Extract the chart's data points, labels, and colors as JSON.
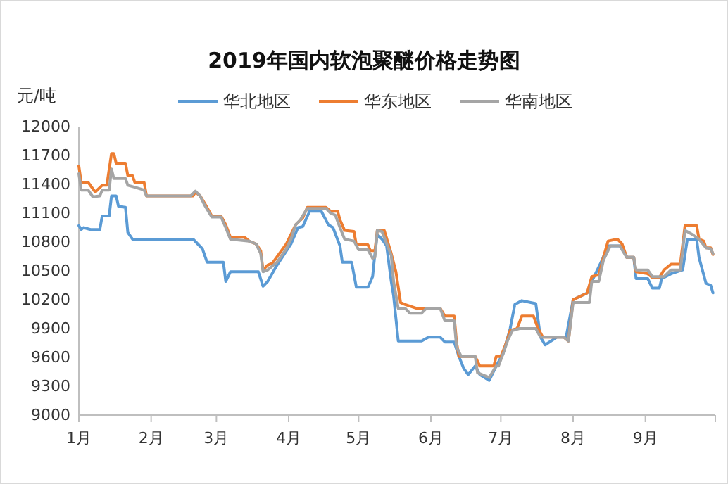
{
  "chart_data": {
    "type": "line",
    "title": "2019年国内软泡聚醚价格走势图",
    "ylabel": "元/吨",
    "legend": "top",
    "xlim": [
      "--01-01",
      "--10-01"
    ],
    "xticks": [
      {
        "value": "--01-01",
        "label": "1月"
      },
      {
        "value": "--02-01",
        "label": "2月"
      },
      {
        "value": "--03-01",
        "label": "3月"
      },
      {
        "value": "--04-01",
        "label": "4月"
      },
      {
        "value": "--05-01",
        "label": "5月"
      },
      {
        "value": "--06-01",
        "label": "6月"
      },
      {
        "value": "--07-01",
        "label": "7月"
      },
      {
        "value": "--08-01",
        "label": "8月"
      },
      {
        "value": "--09-01",
        "label": "9月"
      },
      {
        "value": "--10-01",
        "label": null
      }
    ],
    "ylim": [
      9000,
      12000
    ],
    "yticks": [
      9000,
      9300,
      9600,
      9900,
      10200,
      10500,
      10800,
      11100,
      11400,
      11700,
      12000
    ],
    "series": [
      {
        "name": "华北地区",
        "color": "#5b9bd5",
        "x": [
          "--01-01",
          "--01-02",
          "--01-03",
          "--01-06",
          "--01-10",
          "--01-11",
          "--01-14",
          "--01-15",
          "--01-17",
          "--01-18",
          "--01-21",
          "--01-22",
          "--01-24",
          "--02-19",
          "--02-21",
          "--02-23",
          "--02-25",
          "--03-04",
          "--03-05",
          "--03-07",
          "--03-19",
          "--03-21",
          "--03-23",
          "--03-27",
          "--04-02",
          "--04-05",
          "--04-07",
          "--04-10",
          "--04-15",
          "--04-18",
          "--04-20",
          "--04-23",
          "--04-24",
          "--04-28",
          "--04-30",
          "--05-05",
          "--05-07",
          "--05-08",
          "--05-09",
          "--05-11",
          "--05-13",
          "--05-15",
          "--05-16",
          "--05-18",
          "--05-28",
          "--05-31",
          "--06-05",
          "--06-07",
          "--06-11",
          "--06-13",
          "--06-15",
          "--06-17",
          "--06-20",
          "--06-22",
          "--06-26",
          "--06-29",
          "--07-02",
          "--07-05",
          "--07-07",
          "--07-10",
          "--07-16",
          "--07-18",
          "--07-20",
          "--07-25",
          "--07-29",
          "--08-01",
          "--08-07",
          "--08-09",
          "--08-13",
          "--08-16",
          "--08-22",
          "--08-24",
          "--08-27",
          "--08-28",
          "--09-02",
          "--09-04",
          "--09-07",
          "--09-08",
          "--09-12",
          "--09-17",
          "--09-19",
          "--09-23",
          "--09-24",
          "--09-27",
          "--09-29",
          "--09-30"
        ],
        "values": [
          10970,
          10930,
          10950,
          10930,
          10930,
          11070,
          11070,
          11280,
          11280,
          11170,
          11160,
          10900,
          10830,
          10830,
          10780,
          10730,
          10590,
          10590,
          10390,
          10490,
          10490,
          10340,
          10390,
          10560,
          10780,
          10950,
          10960,
          11120,
          11120,
          10980,
          10950,
          10760,
          10590,
          10590,
          10330,
          10330,
          10440,
          10680,
          10880,
          10830,
          10760,
          10390,
          10240,
          9770,
          9770,
          9810,
          9810,
          9760,
          9760,
          9610,
          9490,
          9420,
          9510,
          9420,
          9360,
          9510,
          9640,
          9900,
          10150,
          10190,
          10160,
          9810,
          9730,
          9810,
          9810,
          10200,
          10270,
          10390,
          10590,
          10760,
          10760,
          10640,
          10640,
          10420,
          10420,
          10320,
          10320,
          10420,
          10470,
          10510,
          10830,
          10830,
          10640,
          10370,
          10350,
          10270
        ]
      },
      {
        "name": "华东地区",
        "color": "#ed7d31",
        "x": [
          "--01-01",
          "--01-02",
          "--01-05",
          "--01-08",
          "--01-11",
          "--01-13",
          "--01-15",
          "--01-16",
          "--01-17",
          "--01-21",
          "--01-22",
          "--01-24",
          "--01-25",
          "--01-29",
          "--01-30",
          "--02-19",
          "--02-20",
          "--02-22",
          "--02-24",
          "--02-27",
          "--03-03",
          "--03-05",
          "--03-07",
          "--03-13",
          "--03-15",
          "--03-18",
          "--03-20",
          "--03-21",
          "--03-23",
          "--03-25",
          "--03-28",
          "--03-31",
          "--04-02",
          "--04-04",
          "--04-07",
          "--04-09",
          "--04-17",
          "--04-19",
          "--04-22",
          "--04-23",
          "--04-25",
          "--04-29",
          "--04-30",
          "--05-05",
          "--05-06",
          "--05-08",
          "--05-09",
          "--05-12",
          "--05-15",
          "--05-17",
          "--05-19",
          "--05-21",
          "--05-26",
          "--06-05",
          "--06-07",
          "--06-11",
          "--06-12",
          "--06-13",
          "--06-20",
          "--06-22",
          "--06-28",
          "--06-29",
          "--07-01",
          "--07-03",
          "--07-05",
          "--07-08",
          "--07-10",
          "--07-15",
          "--07-17",
          "--07-19",
          "--07-28",
          "--07-30",
          "--08-01",
          "--08-07",
          "--08-09",
          "--08-12",
          "--08-14",
          "--08-16",
          "--08-20",
          "--08-22",
          "--08-24",
          "--08-27",
          "--08-28",
          "--09-02",
          "--09-04",
          "--09-07",
          "--09-09",
          "--09-12",
          "--09-16",
          "--09-18",
          "--09-23",
          "--09-24",
          "--09-26",
          "--09-27",
          "--09-29",
          "--09-30"
        ],
        "values": [
          11590,
          11420,
          11420,
          11320,
          11390,
          11390,
          11720,
          11720,
          11620,
          11620,
          11490,
          11490,
          11420,
          11420,
          11280,
          11280,
          11320,
          11280,
          11200,
          11070,
          11070,
          10980,
          10850,
          10850,
          10810,
          10780,
          10710,
          10510,
          10560,
          10580,
          10680,
          10780,
          10880,
          10980,
          11050,
          11160,
          11160,
          11120,
          11120,
          11030,
          10920,
          10910,
          10770,
          10770,
          10710,
          10710,
          10920,
          10920,
          10680,
          10490,
          10170,
          10150,
          10110,
          10110,
          10030,
          10030,
          9760,
          9610,
          9610,
          9510,
          9510,
          9610,
          9610,
          9730,
          9880,
          9900,
          10030,
          10030,
          9900,
          9810,
          9810,
          9770,
          10200,
          10270,
          10440,
          10460,
          10640,
          10810,
          10830,
          10780,
          10640,
          10640,
          10490,
          10470,
          10430,
          10430,
          10510,
          10570,
          10570,
          10970,
          10970,
          10830,
          10810,
          10740,
          10740,
          10670
        ]
      },
      {
        "name": "华南地区",
        "color": "#a5a5a5",
        "x": [
          "--01-01",
          "--01-02",
          "--01-05",
          "--01-07",
          "--01-10",
          "--01-11",
          "--01-14",
          "--01-15",
          "--01-16",
          "--01-21",
          "--01-22",
          "--01-25",
          "--01-29",
          "--01-30",
          "--02-18",
          "--02-20",
          "--02-22",
          "--02-24",
          "--02-27",
          "--03-03",
          "--03-05",
          "--03-07",
          "--03-15",
          "--03-18",
          "--03-20",
          "--03-21",
          "--03-23",
          "--03-27",
          "--03-31",
          "--04-02",
          "--04-04",
          "--04-06",
          "--04-09",
          "--04-17",
          "--04-19",
          "--04-21",
          "--04-23",
          "--04-25",
          "--04-29",
          "--05-01",
          "--05-05",
          "--05-07",
          "--05-08",
          "--05-09",
          "--05-11",
          "--05-15",
          "--05-16",
          "--05-18",
          "--05-21",
          "--05-23",
          "--05-28",
          "--05-30",
          "--06-05",
          "--06-07",
          "--06-11",
          "--06-12",
          "--06-14",
          "--06-20",
          "--06-21",
          "--06-26",
          "--06-29",
          "--06-30",
          "--07-02",
          "--07-04",
          "--07-06",
          "--07-09",
          "--07-16",
          "--07-18",
          "--07-28",
          "--07-30",
          "--08-01",
          "--08-08",
          "--08-09",
          "--08-12",
          "--08-14",
          "--08-17",
          "--08-21",
          "--08-24",
          "--08-27",
          "--08-28",
          "--09-02",
          "--09-04",
          "--09-09",
          "--09-12",
          "--09-16",
          "--09-18",
          "--09-21",
          "--09-24",
          "--09-27",
          "--09-29",
          "--09-30"
        ],
        "values": [
          11510,
          11340,
          11340,
          11270,
          11280,
          11340,
          11340,
          11560,
          11460,
          11460,
          11390,
          11370,
          11340,
          11280,
          11280,
          11330,
          11280,
          11180,
          11060,
          11060,
          10950,
          10830,
          10810,
          10780,
          10680,
          10490,
          10510,
          10590,
          10730,
          10830,
          10980,
          11030,
          11150,
          11150,
          11100,
          11080,
          10950,
          10830,
          10810,
          10720,
          10720,
          10630,
          10640,
          10920,
          10910,
          10660,
          10390,
          10110,
          10110,
          10060,
          10060,
          10110,
          10110,
          9980,
          9980,
          9710,
          9610,
          9610,
          9440,
          9390,
          9510,
          9510,
          9640,
          9780,
          9880,
          9900,
          9900,
          9810,
          9810,
          9770,
          10170,
          10170,
          10390,
          10390,
          10610,
          10760,
          10760,
          10640,
          10640,
          10510,
          10510,
          10440,
          10440,
          10510,
          10510,
          10920,
          10880,
          10830,
          10740,
          10730,
          10680
        ]
      }
    ]
  }
}
